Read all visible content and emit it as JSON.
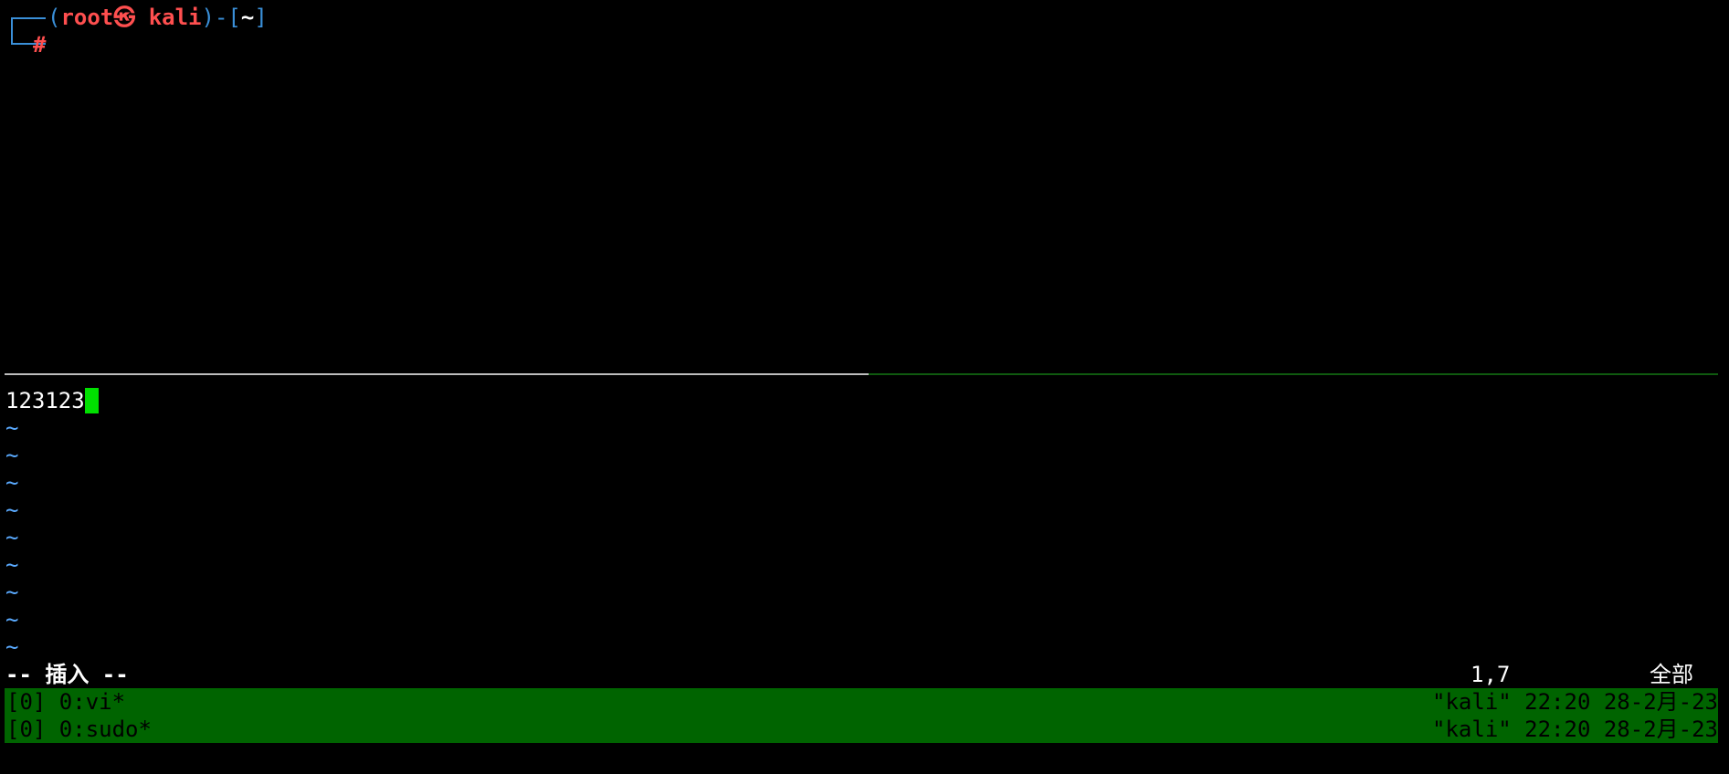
{
  "top_pane": {
    "prompt_open": "(",
    "user": "root",
    "at_symbol": "㉿",
    "host": "kali",
    "sep": ")-[",
    "cwd": "~",
    "close": "]",
    "hash": "#"
  },
  "vim": {
    "buffer_line": "123123",
    "tilde": "~",
    "mode": "-- 插入 --",
    "position": "1,7",
    "scroll": "全部"
  },
  "tmux": {
    "windows": [
      {
        "left": "[0] 0:vi*",
        "right": "\"kali\" 22:20 28-2月-23"
      },
      {
        "left": "[0] 0:sudo*",
        "right": "\"kali\" 22:20 28-2月-23"
      }
    ]
  },
  "colors": {
    "prompt_blue": "#3a8fd8",
    "prompt_red": "#ff4f4f",
    "cursor_green": "#00e000",
    "tmux_bar_green": "#006400",
    "tilde_blue": "#5aaaff"
  }
}
